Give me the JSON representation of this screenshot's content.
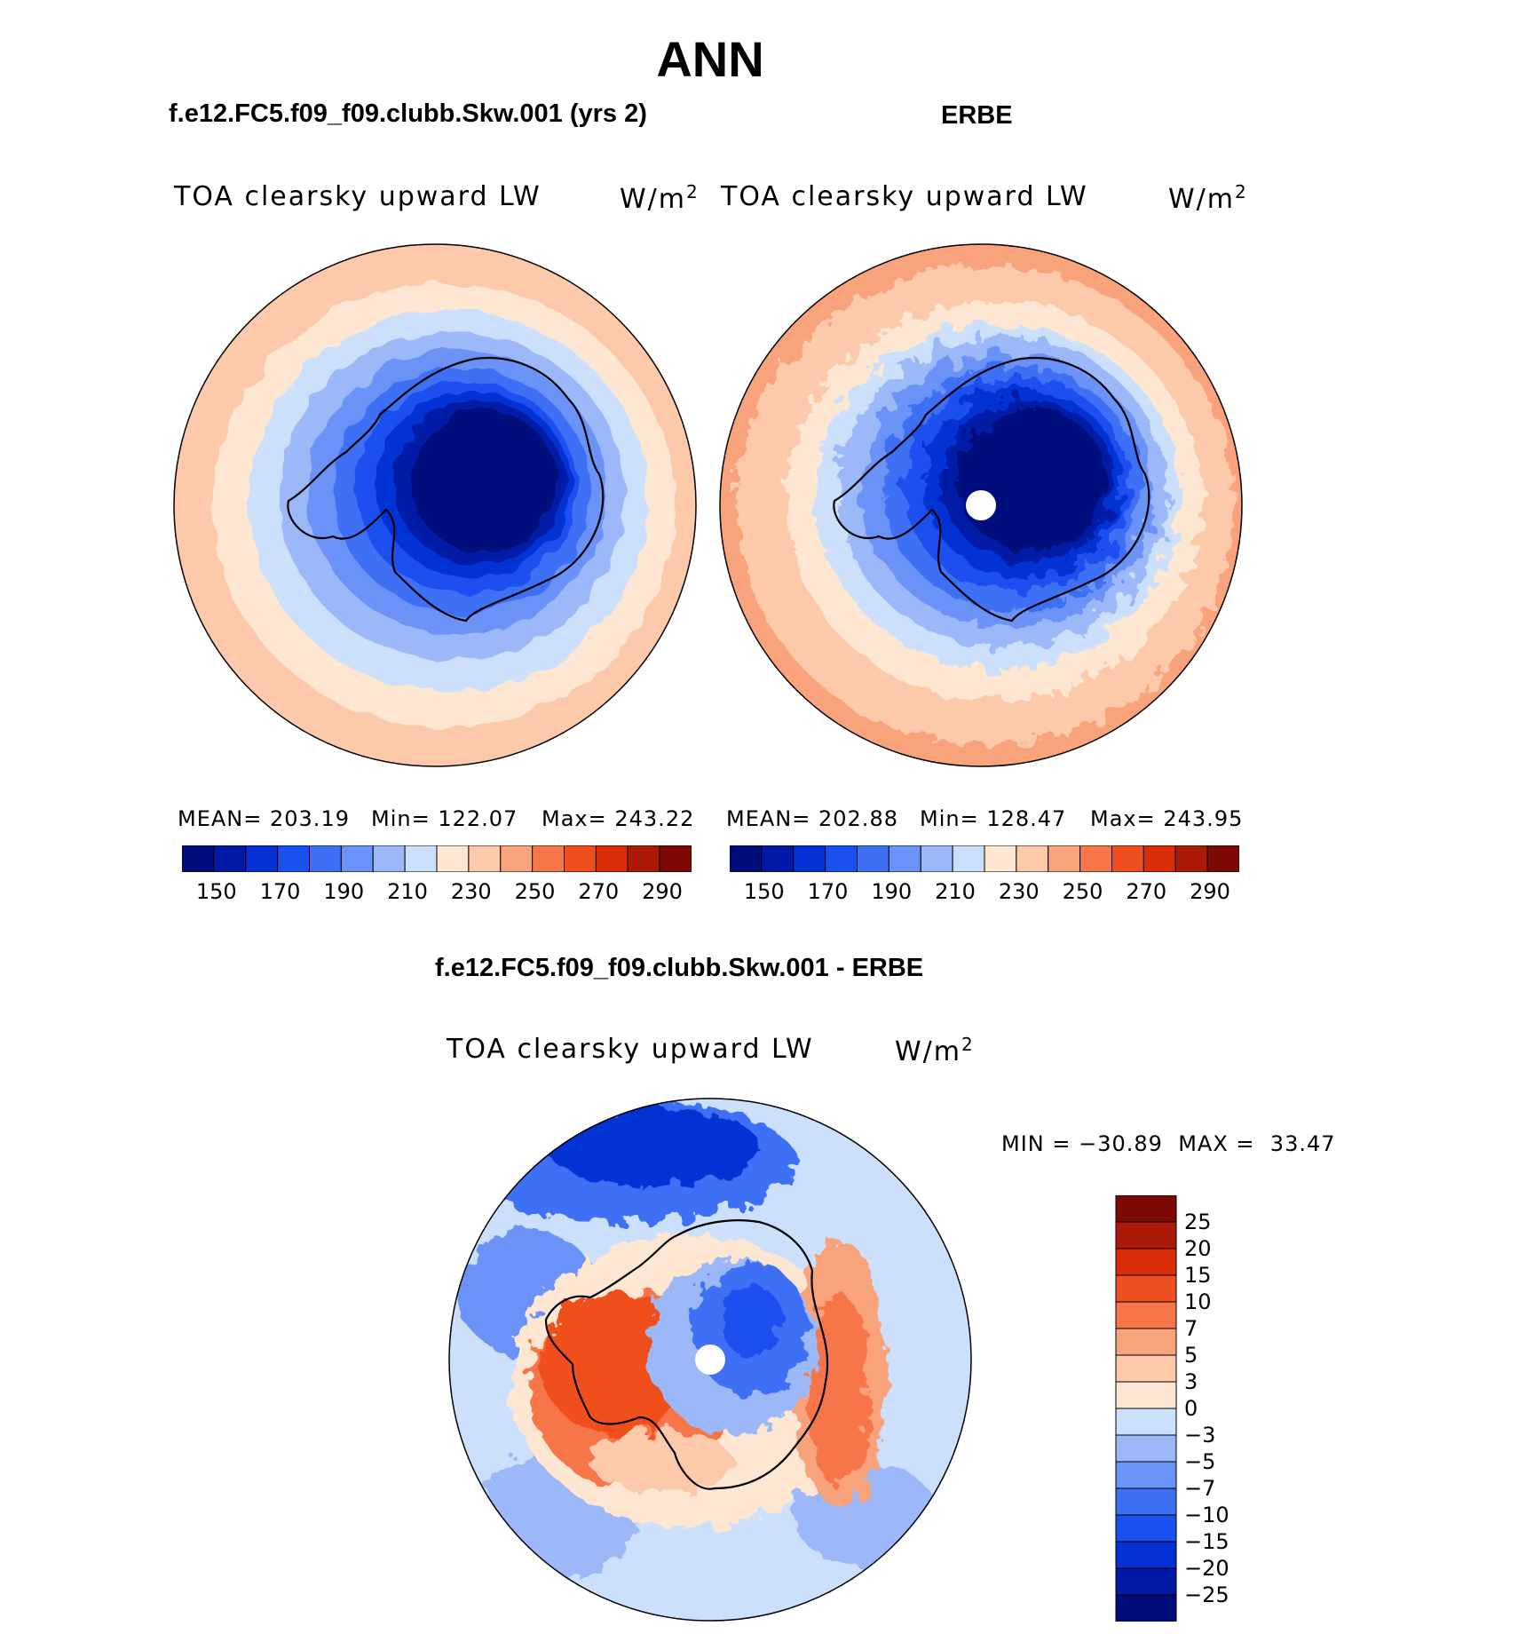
{
  "header": {
    "title": "ANN",
    "panel1_title": "f.e12.FC5.f09_f09.clubb.Skw.001 (yrs 2)",
    "panel2_title": "ERBE",
    "diff_title": "f.e12.FC5.f09_f09.clubb.Skw.001 - ERBE"
  },
  "panels": [
    {
      "variable": "TOA clearsky upward LW",
      "units_base": "W/m",
      "units_exp": "2",
      "mean_label": "MEAN=",
      "mean": "203.19",
      "min_label": "Min=",
      "min": "122.07",
      "max_label": "Max=",
      "max": "243.22"
    },
    {
      "variable": "TOA clearsky upward LW",
      "units_base": "W/m",
      "units_exp": "2",
      "mean_label": "MEAN=",
      "mean": "202.88",
      "min_label": "Min=",
      "min": "128.47",
      "max_label": "Max=",
      "max": "243.95"
    }
  ],
  "diff": {
    "variable": "TOA clearsky upward LW",
    "units_base": "W/m",
    "units_exp": "2",
    "min_label": "MIN =",
    "min": "−30.89",
    "max_label": "MAX =",
    "max": "33.47"
  },
  "chart_data": [
    {
      "type": "heatmap",
      "projection": "south polar stereographic",
      "title": "f.e12.FC5.f09_f09.clubb.Skw.001 (yrs 2)",
      "variable": "TOA clearsky upward LW",
      "units": "W/m2",
      "mean": 203.19,
      "min": 122.07,
      "max": 243.22,
      "colorbar_levels": [
        140,
        150,
        160,
        170,
        180,
        190,
        200,
        210,
        220,
        230,
        240,
        250,
        260,
        270,
        280,
        290
      ],
      "colorbar_tick_labels": [
        "150",
        "170",
        "190",
        "210",
        "230",
        "250",
        "270",
        "290"
      ],
      "colors": [
        "#000c7c",
        "#001aa7",
        "#0630d4",
        "#1a4ff0",
        "#3e6ff5",
        "#6b92f7",
        "#9cb8f8",
        "#cce0fb",
        "#fde7d3",
        "#fccaab",
        "#f9a37c",
        "#f6764a",
        "#f04f1f",
        "#db2c0a",
        "#ab1a06",
        "#7c0a02"
      ]
    },
    {
      "type": "heatmap",
      "projection": "south polar stereographic",
      "title": "ERBE",
      "variable": "TOA clearsky upward LW",
      "units": "W/m2",
      "mean": 202.88,
      "min": 128.47,
      "max": 243.95,
      "colorbar_levels": [
        140,
        150,
        160,
        170,
        180,
        190,
        200,
        210,
        220,
        230,
        240,
        250,
        260,
        270,
        280,
        290
      ],
      "colorbar_tick_labels": [
        "150",
        "170",
        "190",
        "210",
        "230",
        "250",
        "270",
        "290"
      ],
      "colors": [
        "#000c7c",
        "#001aa7",
        "#0630d4",
        "#1a4ff0",
        "#3e6ff5",
        "#6b92f7",
        "#9cb8f8",
        "#cce0fb",
        "#fde7d3",
        "#fccaab",
        "#f9a37c",
        "#f6764a",
        "#f04f1f",
        "#db2c0a",
        "#ab1a06",
        "#7c0a02"
      ]
    },
    {
      "type": "heatmap",
      "projection": "south polar stereographic",
      "title": "f.e12.FC5.f09_f09.clubb.Skw.001 - ERBE",
      "variable": "TOA clearsky upward LW",
      "units": "W/m2",
      "min": -30.89,
      "max": 33.47,
      "colorbar_levels": [
        -25,
        -20,
        -15,
        -10,
        -7,
        -5,
        -3,
        0,
        3,
        5,
        7,
        10,
        15,
        20,
        25
      ],
      "colorbar_tick_labels": [
        "25",
        "20",
        "15",
        "10",
        "7",
        "5",
        "3",
        "0",
        "−3",
        "−5",
        "−7",
        "−10",
        "−15",
        "−20",
        "−25"
      ],
      "colors_top_to_bottom": [
        "#7c0a02",
        "#ab1a06",
        "#db2c0a",
        "#f04f1f",
        "#f6764a",
        "#f9a37c",
        "#fccaab",
        "#fde7d3",
        "#cce0fb",
        "#9cb8f8",
        "#6b92f7",
        "#3e6ff5",
        "#1a4ff0",
        "#0630d4",
        "#001aa7",
        "#000c7c"
      ]
    }
  ]
}
